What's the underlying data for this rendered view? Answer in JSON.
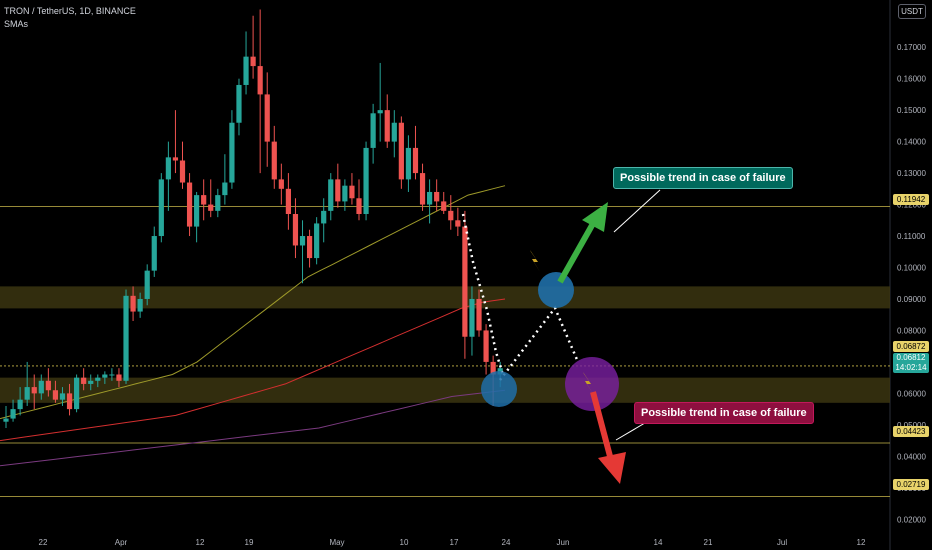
{
  "header": {
    "title": "TRON / TetherUS, 1D, BINANCE",
    "indicator": "SMAs",
    "unit": "USDT"
  },
  "callouts": {
    "up": "Possible trend in case of failure",
    "down": "Possible trend in case of failure"
  },
  "price_tags": {
    "level_1": "0.11942",
    "current_a": "0.06872",
    "current_b": "0.06812",
    "countdown": "14:02:14",
    "level_2": "0.04423",
    "level_3": "0.02719"
  },
  "colors": {
    "up": "#26a69a",
    "down": "#ef5350",
    "sma_fast": "#9e9a2a",
    "sma_mid": "#d32f2f",
    "sma_slow": "#7b3a80",
    "zone": "#3b3510",
    "level_line": "#c9b84a"
  },
  "chart_data": {
    "type": "candlestick",
    "title": "TRON / TetherUS, 1D, BINANCE",
    "ylim": [
      0.015,
      0.185
    ],
    "y_ticks": [
      0.02,
      0.03,
      0.04,
      0.05,
      0.06,
      0.07,
      0.08,
      0.09,
      0.1,
      0.11,
      0.12,
      0.13,
      0.14,
      0.15,
      0.16,
      0.17
    ],
    "x_labels": [
      "22",
      "Apr",
      "12",
      "19",
      "May",
      "10",
      "17",
      "24",
      "Jun",
      "14",
      "21",
      "Jul",
      "12"
    ],
    "ohlc": [
      [
        0.051,
        0.056,
        0.049,
        0.052
      ],
      [
        0.052,
        0.058,
        0.051,
        0.055
      ],
      [
        0.055,
        0.062,
        0.053,
        0.058
      ],
      [
        0.058,
        0.07,
        0.056,
        0.062
      ],
      [
        0.062,
        0.066,
        0.055,
        0.06
      ],
      [
        0.06,
        0.066,
        0.058,
        0.064
      ],
      [
        0.064,
        0.068,
        0.059,
        0.061
      ],
      [
        0.061,
        0.064,
        0.057,
        0.058
      ],
      [
        0.058,
        0.062,
        0.056,
        0.06
      ],
      [
        0.06,
        0.063,
        0.053,
        0.055
      ],
      [
        0.055,
        0.066,
        0.054,
        0.065
      ],
      [
        0.065,
        0.068,
        0.061,
        0.063
      ],
      [
        0.063,
        0.066,
        0.061,
        0.064
      ],
      [
        0.064,
        0.066,
        0.062,
        0.065
      ],
      [
        0.065,
        0.067,
        0.063,
        0.066
      ],
      [
        0.066,
        0.068,
        0.064,
        0.066
      ],
      [
        0.066,
        0.068,
        0.062,
        0.064
      ],
      [
        0.064,
        0.093,
        0.063,
        0.091
      ],
      [
        0.091,
        0.094,
        0.083,
        0.086
      ],
      [
        0.086,
        0.092,
        0.084,
        0.09
      ],
      [
        0.09,
        0.101,
        0.088,
        0.099
      ],
      [
        0.099,
        0.113,
        0.097,
        0.11
      ],
      [
        0.11,
        0.13,
        0.108,
        0.128
      ],
      [
        0.128,
        0.14,
        0.118,
        0.135
      ],
      [
        0.135,
        0.15,
        0.13,
        0.134
      ],
      [
        0.134,
        0.14,
        0.125,
        0.127
      ],
      [
        0.127,
        0.13,
        0.11,
        0.113
      ],
      [
        0.113,
        0.124,
        0.108,
        0.123
      ],
      [
        0.123,
        0.128,
        0.115,
        0.12
      ],
      [
        0.12,
        0.128,
        0.116,
        0.118
      ],
      [
        0.118,
        0.125,
        0.116,
        0.123
      ],
      [
        0.123,
        0.136,
        0.12,
        0.127
      ],
      [
        0.127,
        0.15,
        0.125,
        0.146
      ],
      [
        0.146,
        0.16,
        0.142,
        0.158
      ],
      [
        0.158,
        0.175,
        0.155,
        0.167
      ],
      [
        0.167,
        0.18,
        0.16,
        0.164
      ],
      [
        0.164,
        0.182,
        0.13,
        0.155
      ],
      [
        0.155,
        0.162,
        0.132,
        0.14
      ],
      [
        0.14,
        0.145,
        0.125,
        0.128
      ],
      [
        0.128,
        0.133,
        0.12,
        0.125
      ],
      [
        0.125,
        0.13,
        0.112,
        0.117
      ],
      [
        0.117,
        0.122,
        0.103,
        0.107
      ],
      [
        0.107,
        0.115,
        0.095,
        0.11
      ],
      [
        0.11,
        0.112,
        0.1,
        0.103
      ],
      [
        0.103,
        0.116,
        0.101,
        0.114
      ],
      [
        0.114,
        0.122,
        0.108,
        0.118
      ],
      [
        0.118,
        0.13,
        0.115,
        0.128
      ],
      [
        0.128,
        0.133,
        0.119,
        0.121
      ],
      [
        0.121,
        0.128,
        0.118,
        0.126
      ],
      [
        0.126,
        0.13,
        0.12,
        0.122
      ],
      [
        0.122,
        0.128,
        0.115,
        0.117
      ],
      [
        0.117,
        0.14,
        0.115,
        0.138
      ],
      [
        0.138,
        0.152,
        0.133,
        0.149
      ],
      [
        0.149,
        0.165,
        0.14,
        0.15
      ],
      [
        0.15,
        0.155,
        0.138,
        0.14
      ],
      [
        0.14,
        0.15,
        0.135,
        0.146
      ],
      [
        0.146,
        0.148,
        0.125,
        0.128
      ],
      [
        0.128,
        0.142,
        0.124,
        0.138
      ],
      [
        0.138,
        0.145,
        0.128,
        0.13
      ],
      [
        0.13,
        0.133,
        0.118,
        0.12
      ],
      [
        0.12,
        0.128,
        0.114,
        0.124
      ],
      [
        0.124,
        0.128,
        0.118,
        0.121
      ],
      [
        0.121,
        0.124,
        0.117,
        0.118
      ],
      [
        0.118,
        0.123,
        0.112,
        0.115
      ],
      [
        0.115,
        0.119,
        0.11,
        0.113
      ],
      [
        0.113,
        0.118,
        0.071,
        0.078
      ],
      [
        0.078,
        0.094,
        0.072,
        0.09
      ],
      [
        0.09,
        0.093,
        0.078,
        0.08
      ],
      [
        0.08,
        0.082,
        0.066,
        0.07
      ],
      [
        0.07,
        0.072,
        0.056,
        0.066
      ],
      [
        0.066,
        0.07,
        0.062,
        0.068
      ]
    ],
    "series": [
      {
        "type": "line",
        "values": [
          0.052,
          0.053,
          0.054,
          0.055,
          0.056,
          0.057,
          0.058,
          0.059,
          0.06,
          0.061,
          0.062,
          0.063,
          0.064,
          0.065,
          0.066,
          0.068,
          0.07,
          0.073,
          0.076,
          0.079,
          0.082,
          0.085,
          0.088,
          0.091,
          0.094,
          0.097,
          0.099,
          0.101,
          0.103,
          0.105,
          0.107,
          0.109,
          0.111,
          0.113,
          0.115,
          0.117,
          0.119,
          0.121,
          0.123,
          0.124,
          0.125,
          0.126
        ]
      },
      {
        "type": "line",
        "values": [
          0.045,
          0.046,
          0.047,
          0.048,
          0.049,
          0.05,
          0.051,
          0.052,
          0.053,
          0.055,
          0.057,
          0.059,
          0.061,
          0.063,
          0.066,
          0.069,
          0.072,
          0.075,
          0.078,
          0.081,
          0.084,
          0.087,
          0.089,
          0.09
        ]
      },
      {
        "type": "line",
        "values": [
          0.037,
          0.038,
          0.039,
          0.04,
          0.041,
          0.042,
          0.043,
          0.044,
          0.045,
          0.046,
          0.047,
          0.048,
          0.049,
          0.051,
          0.053,
          0.055,
          0.057,
          0.059,
          0.06,
          0.061
        ]
      }
    ],
    "horizontal_levels": [
      0.11942,
      0.06872,
      0.04423,
      0.02719
    ],
    "zones": [
      [
        0.087,
        0.094
      ],
      [
        0.057,
        0.065
      ]
    ]
  }
}
